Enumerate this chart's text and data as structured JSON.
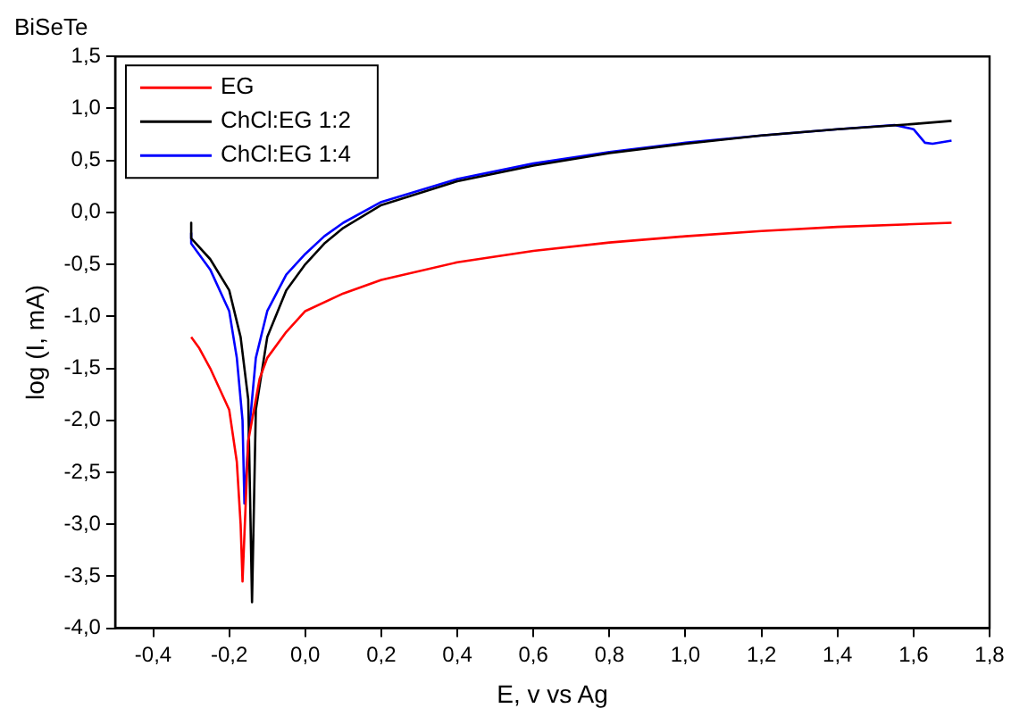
{
  "chart_data": {
    "type": "line",
    "title": "BiSeTe",
    "xlabel": "E, v vs Ag",
    "ylabel": "log (I, mA)",
    "xlim": [
      -0.5,
      1.8
    ],
    "xticks": [
      {
        "value": -0.4,
        "label": "-0,4"
      },
      {
        "value": -0.2,
        "label": "-0,2"
      },
      {
        "value": 0,
        "label": "0,0"
      },
      {
        "value": 0.2,
        "label": "0,2"
      },
      {
        "value": 0.4,
        "label": "0,4"
      },
      {
        "value": 0.6,
        "label": "0,6"
      },
      {
        "value": 0.8,
        "label": "0,8"
      },
      {
        "value": 1.0,
        "label": "1,0"
      },
      {
        "value": 1.2,
        "label": "1,2"
      },
      {
        "value": 1.4,
        "label": "1,4"
      },
      {
        "value": 1.6,
        "label": "1,6"
      },
      {
        "value": 1.8,
        "label": "1,8"
      }
    ],
    "ylim": [
      -4,
      1.5
    ],
    "yticks": [
      {
        "value": -4,
        "label": "-4,0"
      },
      {
        "value": -3.5,
        "label": "-3,5"
      },
      {
        "value": -3,
        "label": "-3,0"
      },
      {
        "value": -2.5,
        "label": "-2,5"
      },
      {
        "value": -2,
        "label": "-2,0"
      },
      {
        "value": -1.5,
        "label": "-1,5"
      },
      {
        "value": -1,
        "label": "-1,0"
      },
      {
        "value": -0.5,
        "label": "-0,5"
      },
      {
        "value": 0,
        "label": "0,0"
      },
      {
        "value": 0.5,
        "label": "0,5"
      },
      {
        "value": 1,
        "label": "1,0"
      },
      {
        "value": 1.5,
        "label": "1,5"
      }
    ],
    "grid": false,
    "legend": "top left",
    "marker": "none",
    "line_style": "solid",
    "series": [
      {
        "name": "EG",
        "color": "#ff0000",
        "x": [
          -0.3,
          -0.28,
          -0.25,
          -0.2,
          -0.18,
          -0.17,
          -0.165,
          -0.15,
          -0.12,
          -0.1,
          -0.05,
          0,
          0.1,
          0.2,
          0.4,
          0.6,
          0.8,
          1.0,
          1.2,
          1.4,
          1.7
        ],
        "values": [
          -1.2,
          -1.3,
          -1.5,
          -1.9,
          -2.4,
          -3.0,
          -3.55,
          -2.2,
          -1.6,
          -1.4,
          -1.15,
          -0.95,
          -0.78,
          -0.65,
          -0.48,
          -0.37,
          -0.29,
          -0.23,
          -0.18,
          -0.14,
          -0.1
        ]
      },
      {
        "name": "ChCl:EG 1:2",
        "color": "#000000",
        "x": [
          -0.3,
          -0.3,
          -0.25,
          -0.2,
          -0.17,
          -0.15,
          -0.14,
          -0.13,
          -0.1,
          -0.05,
          0,
          0.05,
          0.1,
          0.2,
          0.4,
          0.6,
          0.8,
          1.0,
          1.2,
          1.4,
          1.6,
          1.7
        ],
        "values": [
          -0.1,
          -0.25,
          -0.45,
          -0.75,
          -1.2,
          -1.8,
          -3.75,
          -1.9,
          -1.2,
          -0.75,
          -0.5,
          -0.3,
          -0.15,
          0.07,
          0.3,
          0.45,
          0.57,
          0.66,
          0.74,
          0.8,
          0.85,
          0.88
        ]
      },
      {
        "name": "ChCl:EG 1:4",
        "color": "#0000ff",
        "x": [
          -0.3,
          -0.3,
          -0.25,
          -0.2,
          -0.18,
          -0.165,
          -0.16,
          -0.15,
          -0.13,
          -0.1,
          -0.05,
          0,
          0.05,
          0.1,
          0.2,
          0.4,
          0.6,
          0.8,
          1.0,
          1.2,
          1.4,
          1.55,
          1.6,
          1.63,
          1.65,
          1.7
        ],
        "values": [
          -0.2,
          -0.3,
          -0.55,
          -0.95,
          -1.4,
          -2.0,
          -2.8,
          -2.2,
          -1.4,
          -0.95,
          -0.6,
          -0.4,
          -0.23,
          -0.1,
          0.1,
          0.32,
          0.47,
          0.58,
          0.67,
          0.74,
          0.8,
          0.84,
          0.8,
          0.67,
          0.66,
          0.69
        ]
      }
    ]
  }
}
